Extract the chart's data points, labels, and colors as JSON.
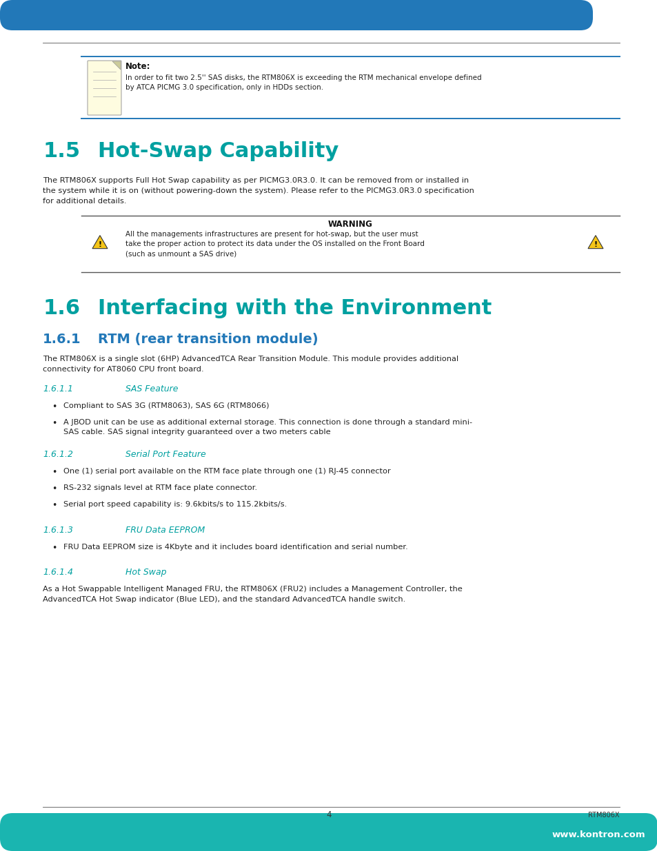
{
  "page_bg": "#ffffff",
  "top_bar_color": "#2278b8",
  "bottom_bar_color": "#1ab5b0",
  "note_border_color": "#2278b8",
  "cyan_heading_color": "#00a0a0",
  "body_text_color": "#222222",
  "subheading_color": "#2278b8",
  "italic_subheading_color": "#00a0a0",
  "note_label": "Note:",
  "note_text": "In order to fit two 2.5'' SAS disks, the RTM806X is exceeding the RTM mechanical envelope defined\nby ATCA PICMG 3.0 specification, only in HDDs section.",
  "h1_5_num": "1.5",
  "h1_5_title": "Hot-Swap Capability",
  "h1_5_body": "The RTM806X supports Full Hot Swap capability as per PICMG3.0R3.0. It can be removed from or installed in\nthe system while it is on (without powering-down the system). Please refer to the PICMG3.0R3.0 specification\nfor additional details.",
  "warning_label": "WARNING",
  "warning_text": "All the managements infrastructures are present for hot-swap, but the user must\ntake the proper action to protect its data under the OS installed on the Front Board\n(such as unmount a SAS drive)",
  "h1_6_num": "1.6",
  "h1_6_title": "Interfacing with the Environment",
  "h1_6_1_num": "1.6.1",
  "h1_6_1_title": "RTM (rear transition module)",
  "h1_6_1_body": "The RTM806X is a single slot (6HP) AdvancedTCA Rear Transition Module. This module provides additional\nconnectivity for AT8060 CPU front board.",
  "h1_6_1_1_num": "1.6.1.1",
  "h1_6_1_1_title": "SAS Feature",
  "bullet1_1": "Compliant to SAS 3G (RTM8063), SAS 6G (RTM8066)",
  "bullet1_2": "A JBOD unit can be use as additional external storage. This connection is done through a standard mini-\nSAS cable. SAS signal integrity guaranteed over a two meters cable",
  "h1_6_1_2_num": "1.6.1.2",
  "h1_6_1_2_title": "Serial Port Feature",
  "bullet2_1": "One (1) serial port available on the RTM face plate through one (1) RJ-45 connector",
  "bullet2_2": "RS-232 signals level at RTM face plate connector.",
  "bullet2_3": "Serial port speed capability is: 9.6kbits/s to 115.2kbits/s.",
  "h1_6_1_3_num": "1.6.1.3",
  "h1_6_1_3_title": "FRU Data EEPROM",
  "bullet3_1": "FRU Data EEPROM size is 4Kbyte and it includes board identification and serial number.",
  "h1_6_1_4_num": "1.6.1.4",
  "h1_6_1_4_title": "Hot Swap",
  "h1_6_1_4_body": "As a Hot Swappable Intelligent Managed FRU, the RTM806X (FRU2) includes a Management Controller, the\nAdvancedTCA Hot Swap indicator (Blue LED), and the standard AdvancedTCA handle switch.",
  "footer_page": "4",
  "footer_right": "RTM806X",
  "footer_web": "www.kontron.com"
}
